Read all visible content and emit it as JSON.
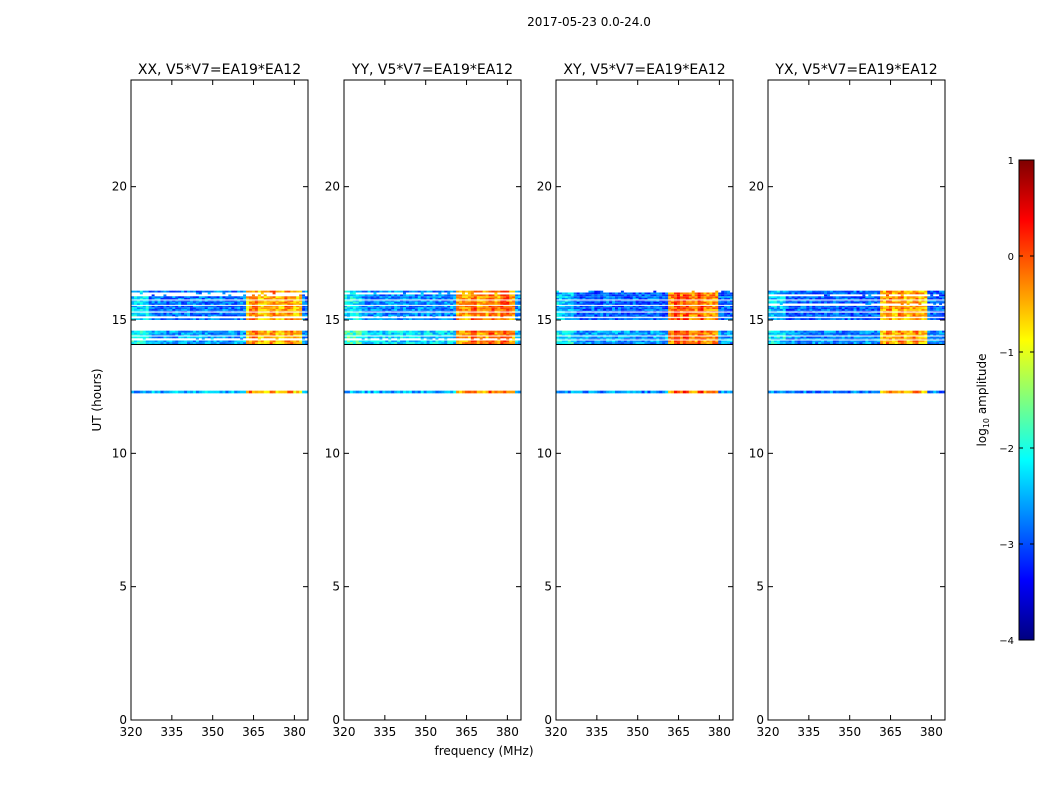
{
  "figure": {
    "suptitle": "2017-05-23 0.0-24.0",
    "xlabel": "frequency (MHz)",
    "ylabel": "UT (hours)"
  },
  "colorbar": {
    "label_prefix": "log",
    "label_sub": "10",
    "label_suffix": " amplitude",
    "ticks": [
      1,
      0,
      -1,
      -2,
      -3,
      -4
    ],
    "range": [
      -4,
      1
    ],
    "colormap": "jet",
    "colors": [
      "#00007f",
      "#0000ff",
      "#007fff",
      "#00ffff",
      "#7fff7f",
      "#ffff00",
      "#ff7f00",
      "#ff0000",
      "#7f0000"
    ]
  },
  "chart_data": [
    {
      "type": "heatmap",
      "title": "XX, V5*V7=EA19*EA12",
      "xlabel": "frequency (MHz)",
      "ylabel": "UT (hours)",
      "xlim": [
        320,
        385
      ],
      "ylim": [
        0,
        24
      ],
      "xticks": [
        320,
        335,
        350,
        365,
        380
      ],
      "yticks": [
        0,
        5,
        10,
        15,
        20
      ],
      "data_bands": [
        {
          "ut_start": 14.1,
          "ut_end": 14.6,
          "mean_log_amplitude": -2.6
        },
        {
          "ut_start": 15.0,
          "ut_end": 16.1,
          "mean_log_amplitude": -2.8
        },
        {
          "ut_start": 12.25,
          "ut_end": 12.35,
          "mean_log_amplitude": -2.5
        }
      ],
      "hot_band": {
        "freq_start": 362,
        "freq_end": 383,
        "log_amplitude": -0.6
      },
      "peak_freqs": [
        365,
        372,
        378
      ]
    },
    {
      "type": "heatmap",
      "title": "YY, V5*V7=EA19*EA12",
      "xlabel": "frequency (MHz)",
      "ylabel": "UT (hours)",
      "xlim": [
        320,
        385
      ],
      "ylim": [
        0,
        24
      ],
      "xticks": [
        320,
        335,
        350,
        365,
        380
      ],
      "yticks": [
        0,
        5,
        10,
        15,
        20
      ],
      "data_bands": [
        {
          "ut_start": 14.1,
          "ut_end": 14.6,
          "mean_log_amplitude": -2.3
        },
        {
          "ut_start": 15.0,
          "ut_end": 16.1,
          "mean_log_amplitude": -2.7
        },
        {
          "ut_start": 12.25,
          "ut_end": 12.35,
          "mean_log_amplitude": -2.5
        }
      ],
      "hot_band": {
        "freq_start": 361,
        "freq_end": 383,
        "log_amplitude": -0.4
      },
      "peak_freqs": [
        368,
        374,
        379
      ]
    },
    {
      "type": "heatmap",
      "title": "XY, V5*V7=EA19*EA12",
      "xlabel": "frequency (MHz)",
      "ylabel": "UT (hours)",
      "xlim": [
        320,
        385
      ],
      "ylim": [
        0,
        24
      ],
      "xticks": [
        320,
        335,
        350,
        365,
        380
      ],
      "yticks": [
        0,
        5,
        10,
        15,
        20
      ],
      "data_bands": [
        {
          "ut_start": 14.1,
          "ut_end": 14.6,
          "mean_log_amplitude": -2.6
        },
        {
          "ut_start": 15.0,
          "ut_end": 16.1,
          "mean_log_amplitude": -2.9
        },
        {
          "ut_start": 12.25,
          "ut_end": 12.35,
          "mean_log_amplitude": -2.7
        }
      ],
      "hot_band": {
        "freq_start": 361,
        "freq_end": 380,
        "log_amplitude": -0.3
      },
      "peak_freqs": [
        364,
        368,
        373
      ]
    },
    {
      "type": "heatmap",
      "title": "YX, V5*V7=EA19*EA12",
      "xlabel": "frequency (MHz)",
      "ylabel": "UT (hours)",
      "xlim": [
        320,
        385
      ],
      "ylim": [
        0,
        24
      ],
      "xticks": [
        320,
        335,
        350,
        365,
        380
      ],
      "yticks": [
        0,
        5,
        10,
        15,
        20
      ],
      "data_bands": [
        {
          "ut_start": 14.1,
          "ut_end": 14.6,
          "mean_log_amplitude": -2.7
        },
        {
          "ut_start": 15.0,
          "ut_end": 16.1,
          "mean_log_amplitude": -2.9
        },
        {
          "ut_start": 12.25,
          "ut_end": 12.35,
          "mean_log_amplitude": -2.8
        }
      ],
      "hot_band": {
        "freq_start": 361,
        "freq_end": 378,
        "log_amplitude": -0.6
      },
      "peak_freqs": [
        364,
        369,
        374
      ]
    }
  ]
}
